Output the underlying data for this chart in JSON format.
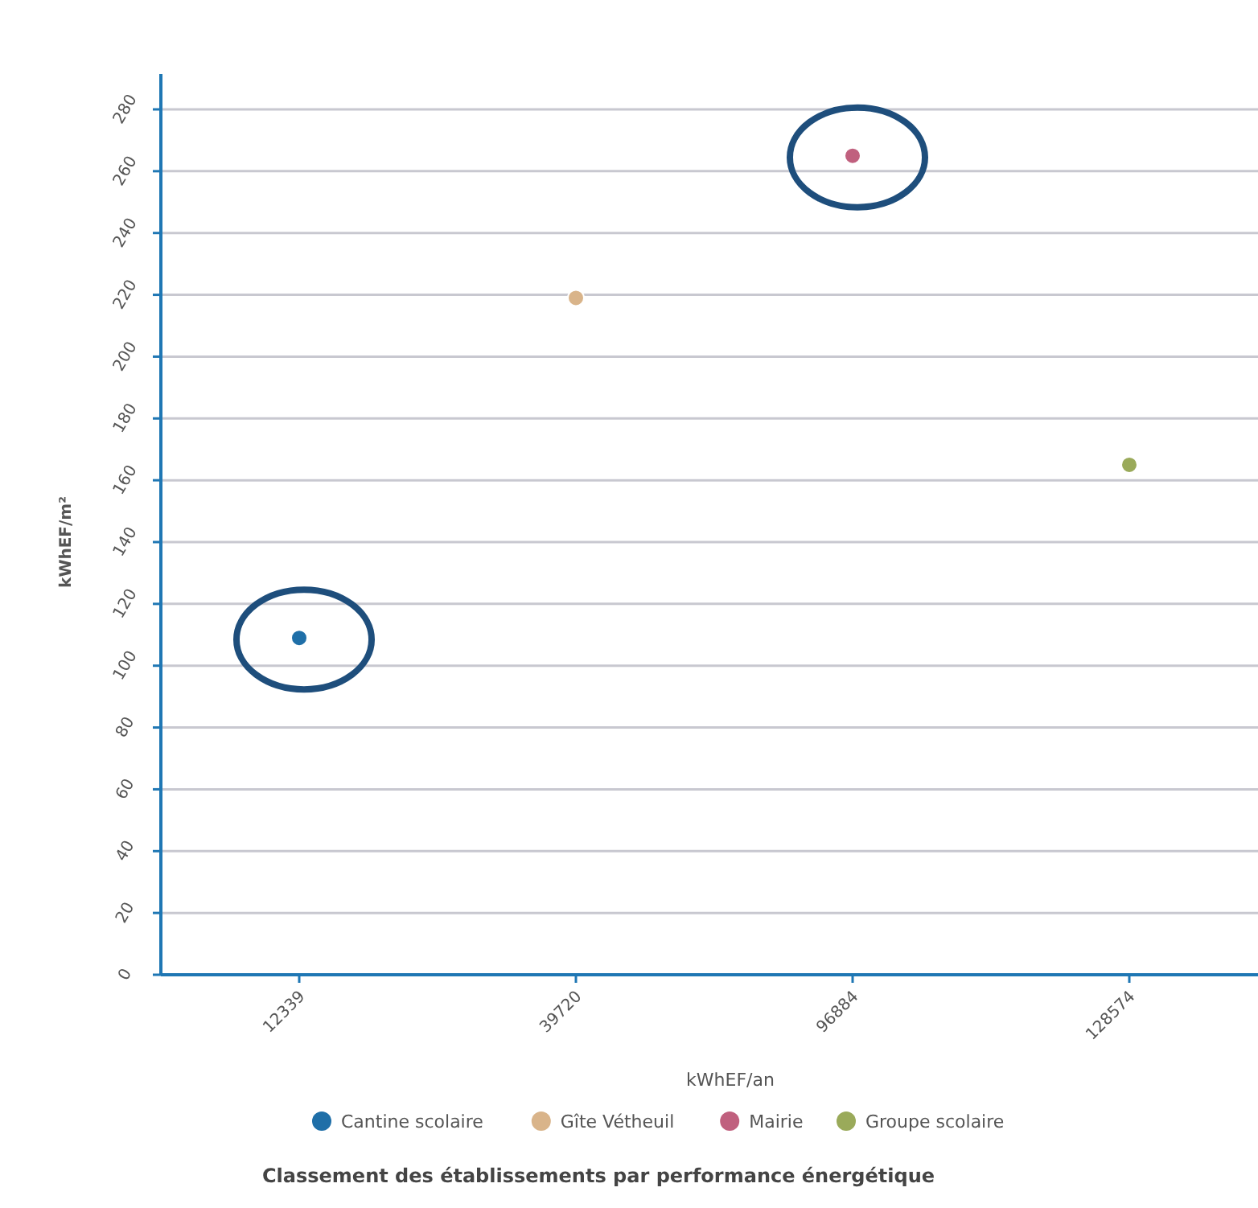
{
  "chart_data": {
    "type": "scatter",
    "title": "Classement des établissements par performance énergétique",
    "xlabel": "kWhEF/an",
    "ylabel": "kWhEF/m²",
    "categories": [
      "12339",
      "39720",
      "96884",
      "128574"
    ],
    "series": [
      {
        "name": "Cantine scolaire",
        "color": "#1f6fa8",
        "values": [
          109,
          null,
          null,
          null
        ]
      },
      {
        "name": "Gîte Vétheuil",
        "color": "#d9b48a",
        "values": [
          null,
          219,
          null,
          null
        ]
      },
      {
        "name": "Mairie",
        "color": "#c0607e",
        "values": [
          null,
          null,
          265,
          null
        ]
      },
      {
        "name": "Groupe scolaire",
        "color": "#9aaa5a",
        "values": [
          null,
          null,
          null,
          165
        ]
      }
    ],
    "ylim": [
      0,
      280
    ],
    "yticks": [
      0,
      20,
      40,
      60,
      80,
      100,
      120,
      140,
      160,
      180,
      200,
      220,
      240,
      260,
      280
    ],
    "grid": "y",
    "legend": "bottom",
    "marker": "circle"
  }
}
